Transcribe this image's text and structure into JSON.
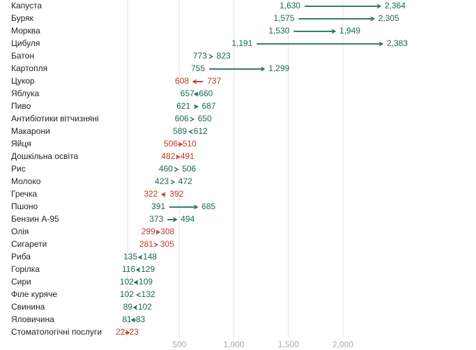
{
  "chart_data": {
    "type": "arrow-dot",
    "title": "",
    "xlabel": "",
    "ylabel": "",
    "xlim": [
      0,
      2600
    ],
    "x_ticks": [
      500,
      1000,
      1500,
      2000
    ],
    "x_tick_labels": [
      "500",
      "1,000",
      "1,500",
      "2,000"
    ],
    "colors": {
      "increase": "#1a6b4f",
      "decrease": "#c0392b",
      "grid": "#e6e6e6",
      "tick_text": "#aaaaaa",
      "label_text": "#222222"
    },
    "rows": [
      {
        "label": "Капуста",
        "from": 1630,
        "to": 2364,
        "from_label": "1,630",
        "to_label": "2,364"
      },
      {
        "label": "Буряк",
        "from": 1575,
        "to": 2305,
        "from_label": "1,575",
        "to_label": "2,305"
      },
      {
        "label": "Морква",
        "from": 1530,
        "to": 1949,
        "from_label": "1,530",
        "to_label": "1,949"
      },
      {
        "label": "Цибуля",
        "from": 1191,
        "to": 2383,
        "from_label": "1,191",
        "to_label": "2,383"
      },
      {
        "label": "Батон",
        "from": 773,
        "to": 823,
        "from_label": "773",
        "to_label": "823"
      },
      {
        "label": "Картопля",
        "from": 755,
        "to": 1299,
        "from_label": "755",
        "to_label": "1,299"
      },
      {
        "label": "Цукор",
        "from": 737,
        "to": 608,
        "from_label": "737",
        "to_label": "608"
      },
      {
        "label": "Яблука",
        "from": 657,
        "to": 660,
        "from_label": "657",
        "to_label": "660"
      },
      {
        "label": "Пиво",
        "from": 621,
        "to": 687,
        "from_label": "621",
        "to_label": "687"
      },
      {
        "label": "Антибіотики вітчизняні",
        "from": 606,
        "to": 650,
        "from_label": "606",
        "to_label": "650"
      },
      {
        "label": "Макарони",
        "from": 589,
        "to": 612,
        "from_label": "589",
        "to_label": "612"
      },
      {
        "label": "Яйця",
        "from": 510,
        "to": 506,
        "from_label": "510",
        "to_label": "506"
      },
      {
        "label": "Дошкільна освіта",
        "from": 491,
        "to": 482,
        "from_label": "491",
        "to_label": "482"
      },
      {
        "label": "Рис",
        "from": 460,
        "to": 506,
        "from_label": "460",
        "to_label": "506"
      },
      {
        "label": "Молоко",
        "from": 423,
        "to": 472,
        "from_label": "423",
        "to_label": "472"
      },
      {
        "label": "Гречка",
        "from": 392,
        "to": 322,
        "from_label": "392",
        "to_label": "322"
      },
      {
        "label": "Пшоно",
        "from": 391,
        "to": 685,
        "from_label": "391",
        "to_label": "685"
      },
      {
        "label": "Бензин А-95",
        "from": 373,
        "to": 494,
        "from_label": "373",
        "to_label": "494"
      },
      {
        "label": "Олія",
        "from": 308,
        "to": 299,
        "from_label": "308",
        "to_label": "299"
      },
      {
        "label": "Сигарети",
        "from": 305,
        "to": 281,
        "from_label": "305",
        "to_label": "281"
      },
      {
        "label": "Риба",
        "from": 135,
        "to": 148,
        "from_label": "135",
        "to_label": "148"
      },
      {
        "label": "Горілка",
        "from": 116,
        "to": 129,
        "from_label": "116",
        "to_label": "129"
      },
      {
        "label": "Сири",
        "from": 102,
        "to": 109,
        "from_label": "102",
        "to_label": "109"
      },
      {
        "label": "Філе куряче",
        "from": 102,
        "to": 132,
        "from_label": "102",
        "to_label": "132"
      },
      {
        "label": "Свинина",
        "from": 89,
        "to": 102,
        "from_label": "89",
        "to_label": "102"
      },
      {
        "label": "Яловичина",
        "from": 81,
        "to": 83,
        "from_label": "81",
        "to_label": "83"
      },
      {
        "label": "Стоматологічні послуги",
        "from": 23,
        "to": 22,
        "from_label": "23",
        "to_label": "22"
      }
    ]
  }
}
